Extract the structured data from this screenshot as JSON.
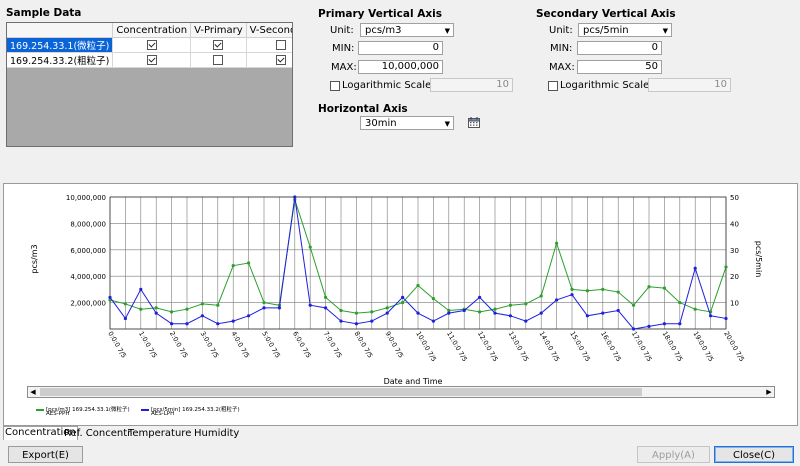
{
  "sample_data": {
    "title": "Sample Data",
    "columns": [
      "",
      "Concentration",
      "V-Primary",
      "V-Secondary"
    ],
    "rows": [
      {
        "name": "169.254.33.1(微粒子)",
        "concentration": true,
        "v_primary": true,
        "v_secondary": false,
        "selected": true
      },
      {
        "name": "169.254.33.2(粗粒子)",
        "concentration": true,
        "v_primary": false,
        "v_secondary": true,
        "selected": false
      }
    ]
  },
  "primary_axis": {
    "title": "Primary Vertical Axis",
    "unit_label": "Unit:",
    "unit": "pcs/m3",
    "min_label": "MIN:",
    "min": "0",
    "max_label": "MAX:",
    "max": "10,000,000",
    "log_label": "Logarithmic Scale",
    "log_checked": false,
    "log_base": "10"
  },
  "secondary_axis": {
    "title": "Secondary Vertical Axis",
    "unit_label": "Unit:",
    "unit": "pcs/5min",
    "min_label": "MIN:",
    "min": "0",
    "max_label": "MAX:",
    "max": "50",
    "log_label": "Logarithmic Scale",
    "log_checked": false,
    "log_base": "10"
  },
  "horizontal_axis": {
    "title": "Horizontal Axis",
    "interval": "30min",
    "calendar_icon": "calendar-icon"
  },
  "chart_data": {
    "type": "line",
    "xlabel": "Date and Time",
    "ylabel_left": "pcs/m3",
    "ylabel_right": "pcs/5min",
    "ylim_left": [
      0,
      10000000
    ],
    "ylim_right": [
      0,
      50
    ],
    "yticks_left": [
      "2,000,000",
      "4,000,000",
      "6,000,000",
      "8,000,000",
      "10,000,000"
    ],
    "yticks_right": [
      "10",
      "20",
      "30",
      "40",
      "50"
    ],
    "x_tick_labels": [
      "0:0:0 7/5",
      "1:0:0 7/5",
      "2:0:0 7/5",
      "3:0:0 7/5",
      "4:0:0 7/5",
      "5:0:0 7/5",
      "6:0:0 7/5",
      "7:0:0 7/5",
      "8:0:0 7/5",
      "9:0:0 7/5",
      "10:0:0 7/5",
      "11:0:0 7/5",
      "12:0:0 7/5",
      "13:0:0 7/5",
      "14:0:0 7/5",
      "15:0:0 7/5",
      "16:0:0 7/5",
      "17:0:0 7/5",
      "18:0:0 7/5",
      "19:0:0 7/5",
      "20:0:0 7/5"
    ],
    "x_start_hours": 0,
    "x_end_hours": 20,
    "grid": true,
    "series": [
      {
        "name": "[pcs/m3] 169.254.33.1(微粒子)",
        "sub": "AES-PPH",
        "color": "#2ca02c",
        "axis": "left",
        "x_hours": [
          0,
          0.5,
          1,
          1.5,
          2,
          2.5,
          3,
          3.5,
          4,
          4.5,
          5,
          5.5,
          6,
          6.5,
          7,
          7.5,
          8,
          8.5,
          9,
          9.5,
          10,
          10.5,
          11,
          11.5,
          12,
          12.5,
          13,
          13.5,
          14,
          14.5,
          15,
          15.5,
          16,
          16.5,
          17,
          17.5,
          18,
          18.5,
          19,
          19.5,
          20
        ],
        "values": [
          2200000,
          1900000,
          1500000,
          1600000,
          1300000,
          1500000,
          1900000,
          1800000,
          4800000,
          5000000,
          2000000,
          1800000,
          9800000,
          6200000,
          2400000,
          1400000,
          1200000,
          1300000,
          1600000,
          2000000,
          3300000,
          2300000,
          1400000,
          1500000,
          1300000,
          1500000,
          1800000,
          1900000,
          2500000,
          6500000,
          3000000,
          2900000,
          3000000,
          2800000,
          1800000,
          3200000,
          3100000,
          2000000,
          1500000,
          1300000,
          4700000
        ]
      },
      {
        "name": "[pcs/5min] 169.254.33.2(粗粒子)",
        "sub": "AES-LPH",
        "color": "#1f1fe0",
        "axis": "right",
        "x_hours": [
          0,
          0.5,
          1,
          1.5,
          2,
          2.5,
          3,
          3.5,
          4,
          4.5,
          5,
          5.5,
          6,
          6.5,
          7,
          7.5,
          8,
          8.5,
          9,
          9.5,
          10,
          10.5,
          11,
          11.5,
          12,
          12.5,
          13,
          13.5,
          14,
          14.5,
          15,
          15.5,
          16,
          16.5,
          17,
          17.5,
          18,
          18.5,
          19,
          19.5,
          20
        ],
        "values": [
          12,
          4,
          15,
          6,
          2,
          2,
          5,
          2,
          3,
          5,
          8,
          8,
          50,
          9,
          8,
          3,
          2,
          3,
          6,
          12,
          6,
          3,
          6,
          7,
          12,
          6,
          5,
          3,
          6,
          11,
          13,
          5,
          6,
          7,
          0,
          1,
          2,
          2,
          23,
          5,
          4
        ]
      }
    ]
  },
  "tabs": [
    "Concentration",
    "Ref. Concentr",
    "Temperature",
    "Humidity"
  ],
  "buttons": {
    "export": "Export(E)",
    "apply": "Apply(A)",
    "close": "Close(C)"
  }
}
